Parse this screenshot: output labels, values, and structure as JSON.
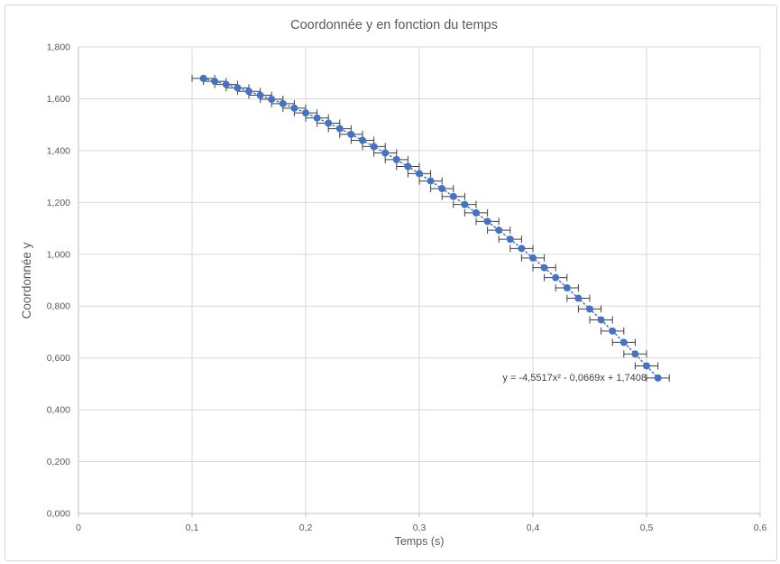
{
  "chart_data": {
    "type": "scatter",
    "title": "Coordonnée y en fonction du temps",
    "xlabel": "Temps (s)",
    "ylabel": "Coordonnée y",
    "xlim": [
      0,
      0.6
    ],
    "ylim": [
      0,
      1.8
    ],
    "x_tick_labels": [
      "0",
      "0,1",
      "0,2",
      "0,3",
      "0,4",
      "0,5",
      "0,6"
    ],
    "y_tick_labels": [
      "0,000",
      "0,200",
      "0,400",
      "0,600",
      "0,800",
      "1,000",
      "1,200",
      "1,400",
      "1,600",
      "1,800"
    ],
    "grid": true,
    "legend": "none",
    "series": [
      {
        "name": "Coordonnée y",
        "marker": "circle",
        "marker_color": "#4472C4",
        "x": [
          0.11,
          0.12,
          0.13,
          0.14,
          0.15,
          0.16,
          0.17,
          0.18,
          0.19,
          0.2,
          0.21,
          0.22,
          0.23,
          0.24,
          0.25,
          0.26,
          0.27,
          0.28,
          0.29,
          0.3,
          0.31,
          0.32,
          0.33,
          0.34,
          0.35,
          0.36,
          0.37,
          0.38,
          0.39,
          0.4,
          0.41,
          0.42,
          0.43,
          0.44,
          0.45,
          0.46,
          0.47,
          0.48,
          0.49,
          0.5,
          0.51
        ],
        "y": [
          1.6784,
          1.6672,
          1.6552,
          1.6422,
          1.6284,
          1.6136,
          1.5979,
          1.5813,
          1.5638,
          1.5454,
          1.526,
          1.5058,
          1.4846,
          1.4626,
          1.4396,
          1.4157,
          1.3909,
          1.3652,
          1.3386,
          1.3111,
          1.2826,
          1.2533,
          1.223,
          1.1919,
          1.1598,
          1.1268,
          1.0929,
          1.0581,
          1.0224,
          0.9858,
          0.9482,
          0.9098,
          0.8704,
          0.8302,
          0.789,
          0.7469,
          0.7039,
          0.66,
          0.6152,
          0.5694,
          0.5228
        ],
        "x_error": 0.01,
        "error_bar_color": "#404040"
      }
    ],
    "trendline": {
      "type": "polynomial",
      "order": 2,
      "coefficients": {
        "a": -4.5517,
        "b": -0.0669,
        "c": 1.7408
      },
      "range": [
        0.11,
        0.51
      ],
      "style": "dotted",
      "color": "#4472C4",
      "equation_label": "y = -4,5517x² - 0,0669x + 1,7408"
    },
    "colors": {
      "gridline": "#D9D9D9",
      "axis_line": "#BFBFBF",
      "text": "#595959",
      "equation_text": "#404040",
      "background": "#FFFFFF"
    }
  }
}
